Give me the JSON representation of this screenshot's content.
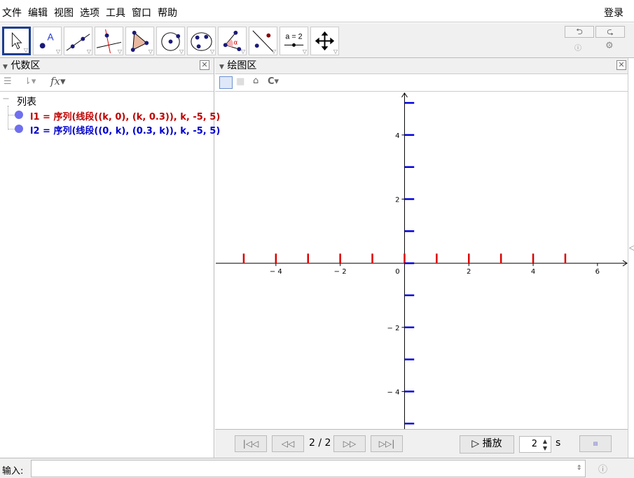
{
  "menu": [
    "文件",
    "编辑",
    "视图",
    "选项",
    "工具",
    "窗口",
    "帮助"
  ],
  "login": "登录",
  "tools": [
    {
      "name": "move-tool-icon"
    },
    {
      "name": "point-tool-icon"
    },
    {
      "name": "line-tool-icon"
    },
    {
      "name": "perpendicular-line-tool-icon"
    },
    {
      "name": "polygon-tool-icon"
    },
    {
      "name": "circle-tool-icon"
    },
    {
      "name": "conic-tool-icon"
    },
    {
      "name": "angle-tool-icon"
    },
    {
      "name": "reflect-tool-icon"
    },
    {
      "name": "slider-tool-icon",
      "label": "a = 2"
    },
    {
      "name": "move-view-tool-icon"
    }
  ],
  "undo": "⮌",
  "redo": "⮎",
  "algebra": {
    "title": "代数区",
    "group": "列表",
    "items": [
      {
        "text": "l1 = 序列(线段((k, 0), (k, 0.3)), k, -5, 5)",
        "color": "#c00000"
      },
      {
        "text": "l2 = 序列(线段((0, k), (0.3, k)), k, -5, 5)",
        "color": "#0000cc"
      }
    ]
  },
  "graphics": {
    "title": "绘图区",
    "xlim": [
      -5.87,
      6.94
    ],
    "ylim": [
      -5.17,
      5.35
    ],
    "xticks": [
      -4,
      -2,
      0,
      2,
      4,
      6
    ],
    "xtick_labels": [
      "− 4",
      "− 2",
      "0",
      "2",
      "4",
      "6"
    ],
    "yticks": [
      4,
      2,
      -2,
      -4
    ],
    "ytick_labels": [
      "4",
      "2",
      "− 2",
      "− 4"
    ],
    "l1_color": "#dd0000",
    "l2_color": "#0000dd",
    "k_range": [
      -5,
      5
    ],
    "seg_len": 0.3
  },
  "nav": {
    "step": "2 / 2",
    "play": "播放",
    "speed": "2",
    "unit": "s"
  },
  "input": {
    "label": "输入:",
    "value": ""
  }
}
